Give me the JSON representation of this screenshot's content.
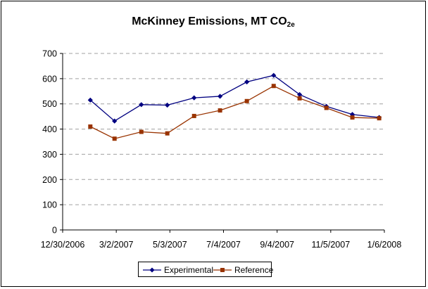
{
  "chart_data": {
    "type": "line",
    "title": "McKinney Emissions, MT CO",
    "title_subscript": "2e",
    "xlabel": "",
    "ylabel": "",
    "x_tick_labels": [
      "12/30/2006",
      "3/2/2007",
      "5/3/2007",
      "7/4/2007",
      "9/4/2007",
      "11/5/2007",
      "1/6/2008"
    ],
    "x_ticks": [
      "2006-12-30",
      "2007-03-02",
      "2007-05-03",
      "2007-07-04",
      "2007-09-04",
      "2007-11-05",
      "2008-01-06"
    ],
    "xlim": [
      "2006-12-30",
      "2008-01-06"
    ],
    "ylim": [
      0,
      700
    ],
    "y_ticks": [
      0,
      100,
      200,
      300,
      400,
      500,
      600,
      700
    ],
    "grid": "horizontal dashed",
    "legend_position": "bottom",
    "x": [
      "2007-01-31",
      "2007-02-28",
      "2007-03-31",
      "2007-04-30",
      "2007-05-31",
      "2007-06-30",
      "2007-07-31",
      "2007-08-31",
      "2007-09-30",
      "2007-10-31",
      "2007-11-30",
      "2007-12-31"
    ],
    "series": [
      {
        "name": "Experimental",
        "color": "#000080",
        "marker": "diamond",
        "values": [
          515,
          432,
          497,
          495,
          524,
          530,
          587,
          613,
          537,
          490,
          458,
          446
        ]
      },
      {
        "name": "Reference",
        "color": "#993300",
        "marker": "square",
        "values": [
          410,
          362,
          389,
          383,
          452,
          474,
          511,
          571,
          522,
          484,
          446,
          443
        ]
      }
    ]
  }
}
